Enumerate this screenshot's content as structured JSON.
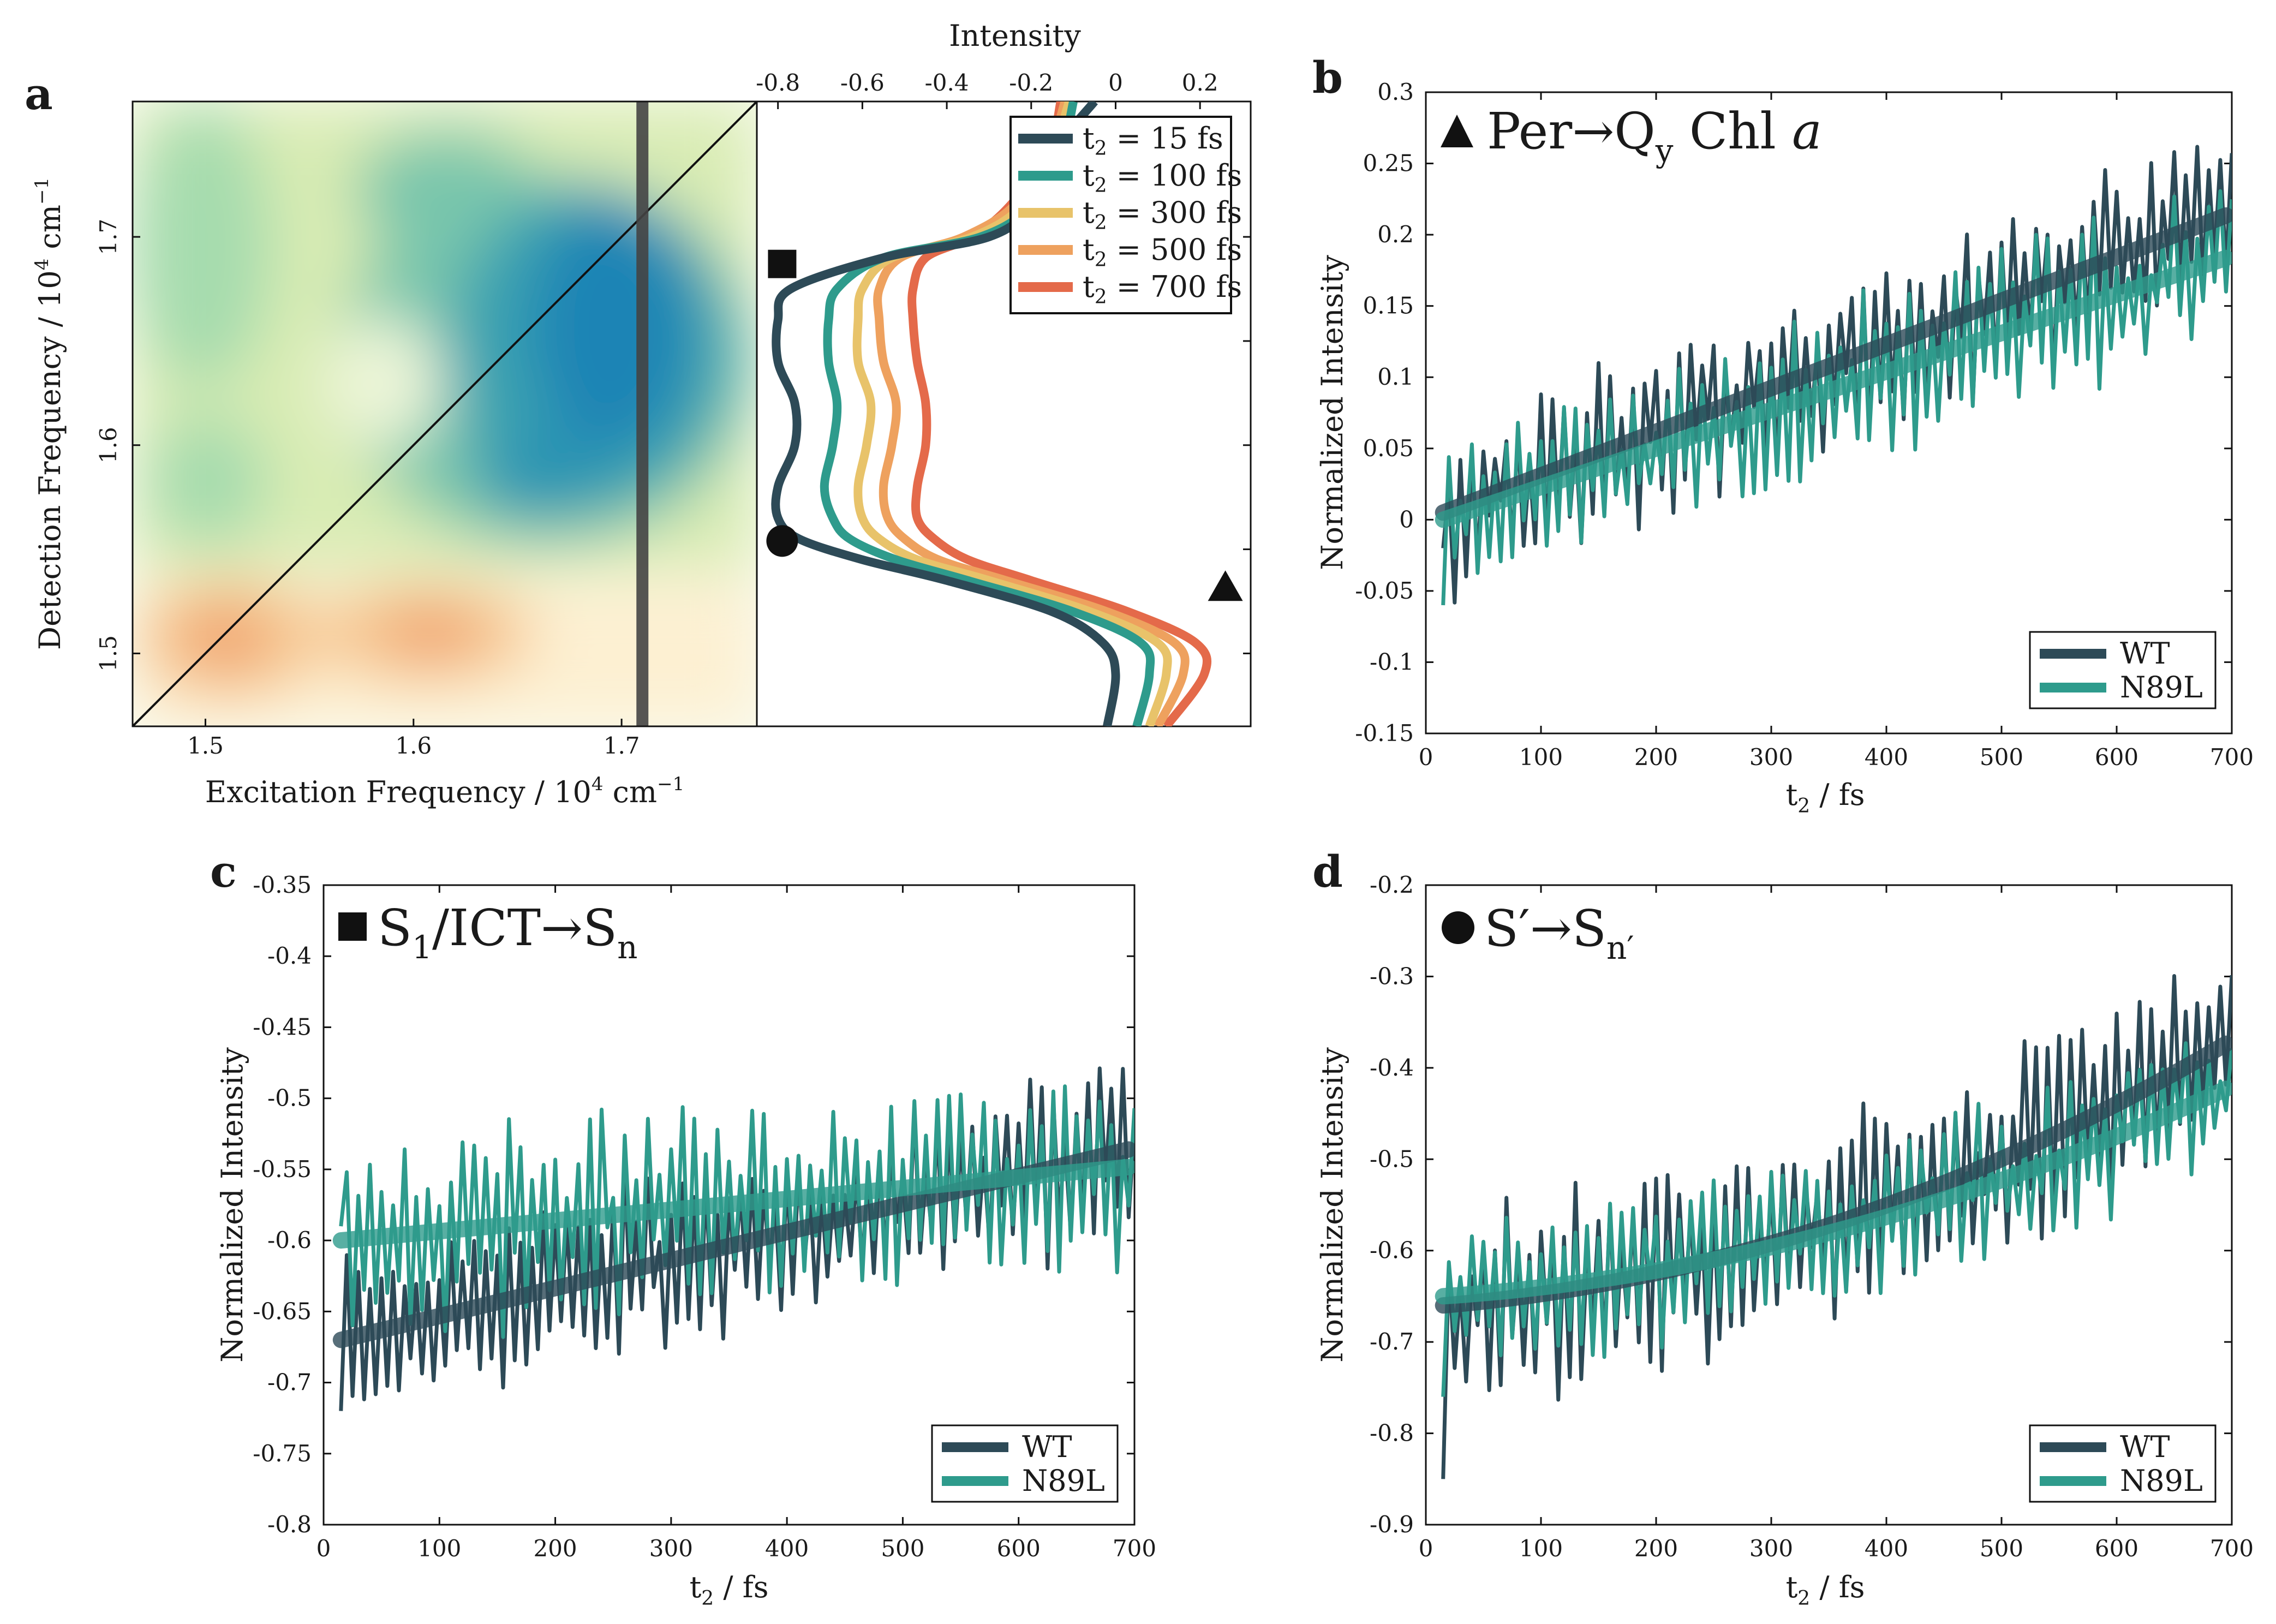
{
  "colors": {
    "wt": "#2d4a57",
    "n89l": "#2e9b8c",
    "t15": "#2d4a57",
    "t100": "#2e9b8c",
    "t300": "#e8c36a",
    "t500": "#eea15e",
    "t700": "#e46a4a"
  },
  "panels": {
    "a": {
      "label": "a",
      "map": {
        "xlabel_main": "Excitation Frequency / 10",
        "xlabel_exp": "4",
        "xlabel_unit": " cm",
        "xlabel_unit_exp": "−1",
        "ylabel_main": "Detection Frequency / 10",
        "ylabel_exp": "4",
        "ylabel_unit": " cm",
        "ylabel_unit_exp": "−1",
        "xlim": [
          1.465,
          1.765
        ],
        "ylim": [
          1.465,
          1.765
        ],
        "xticks": [
          "1.5",
          "1.6",
          "1.7"
        ],
        "yticks": [
          "1.5",
          "1.6",
          "1.7"
        ],
        "slice_at": 1.71
      },
      "spectra": {
        "title": "Intensity",
        "xlim": [
          -0.85,
          0.32
        ],
        "ylim": [
          1.465,
          1.765
        ],
        "xticks": [
          "-0.8",
          "-0.6",
          "-0.4",
          "-0.2",
          "0",
          "0.2"
        ],
        "legend_prefix": "t",
        "legend_sub": "2",
        "legend_entries": [
          "= 15 fs",
          "= 100 fs",
          "= 300 fs",
          "= 500 fs",
          "= 700 fs"
        ],
        "freq": [
          1.465,
          1.49,
          1.505,
          1.52,
          1.535,
          1.545,
          1.555,
          1.565,
          1.58,
          1.6,
          1.62,
          1.64,
          1.66,
          1.675,
          1.69,
          1.7,
          1.715,
          1.74,
          1.765
        ],
        "series": [
          {
            "name": "15 fs",
            "values": [
              -0.02,
              0.0,
              -0.03,
              -0.15,
              -0.4,
              -0.6,
              -0.75,
              -0.8,
              -0.8,
              -0.76,
              -0.76,
              -0.8,
              -0.8,
              -0.77,
              -0.55,
              -0.3,
              -0.2,
              -0.15,
              -0.05
            ]
          },
          {
            "name": "100 fs",
            "values": [
              0.05,
              0.08,
              0.06,
              -0.1,
              -0.35,
              -0.52,
              -0.63,
              -0.67,
              -0.69,
              -0.67,
              -0.66,
              -0.68,
              -0.68,
              -0.66,
              -0.55,
              -0.32,
              -0.2,
              -0.13,
              -0.1
            ]
          },
          {
            "name": "300 fs",
            "values": [
              0.08,
              0.12,
              0.1,
              -0.06,
              -0.3,
              -0.47,
              -0.56,
              -0.6,
              -0.61,
              -0.59,
              -0.58,
              -0.61,
              -0.61,
              -0.6,
              -0.53,
              -0.34,
              -0.22,
              -0.15,
              -0.11
            ]
          },
          {
            "name": "500 fs",
            "values": [
              0.1,
              0.16,
              0.14,
              -0.02,
              -0.26,
              -0.42,
              -0.5,
              -0.54,
              -0.55,
              -0.53,
              -0.52,
              -0.55,
              -0.56,
              -0.56,
              -0.51,
              -0.36,
              -0.24,
              -0.16,
              -0.12
            ]
          },
          {
            "name": "700 fs",
            "values": [
              0.12,
              0.21,
              0.19,
              0.03,
              -0.2,
              -0.35,
              -0.43,
              -0.47,
              -0.47,
              -0.45,
              -0.45,
              -0.47,
              -0.48,
              -0.48,
              -0.45,
              -0.34,
              -0.25,
              -0.16,
              -0.13
            ]
          }
        ],
        "markers": [
          {
            "shape": "square",
            "x": -0.79,
            "y": 1.687
          },
          {
            "shape": "circle",
            "x": -0.79,
            "y": 1.554
          },
          {
            "shape": "triangle",
            "x": 0.26,
            "y": 1.532
          }
        ]
      }
    },
    "b": {
      "label": "b",
      "title_pre": "Per→Q",
      "title_sub": "y",
      "title_post": " Chl ",
      "title_italic": "a",
      "xlim": [
        0,
        700
      ],
      "ylim": [
        -0.15,
        0.3
      ],
      "xticks": [
        "0",
        "100",
        "200",
        "300",
        "400",
        "500",
        "600",
        "700"
      ],
      "yticks": [
        "-0.15",
        "-0.1",
        "-0.05",
        "0",
        "0.05",
        "0.1",
        "0.15",
        "0.2",
        "0.25",
        "0.3"
      ],
      "xlabel": "t",
      "xlabel_sub": "2",
      "xlabel_post": " / fs",
      "ylabel": "Normalized Intensity",
      "legend": [
        "WT",
        "N89L"
      ],
      "wt_fit": [
        0.005,
        0.215
      ],
      "n89l_fit": [
        0.0,
        0.185
      ],
      "wt_y_start": -0.02,
      "n89l_y_start": -0.06
    },
    "c": {
      "label": "c",
      "title_pre": "S",
      "title_sub1": "1",
      "title_mid": "/ICT→S",
      "title_sub2": "n",
      "xlim": [
        0,
        700
      ],
      "ylim": [
        -0.8,
        -0.35
      ],
      "xticks": [
        "0",
        "100",
        "200",
        "300",
        "400",
        "500",
        "600",
        "700"
      ],
      "yticks": [
        "-0.8",
        "-0.75",
        "-0.7",
        "-0.65",
        "-0.6",
        "-0.55",
        "-0.5",
        "-0.45",
        "-0.4",
        "-0.35"
      ],
      "xlabel": "t",
      "xlabel_sub": "2",
      "xlabel_post": " / fs",
      "ylabel": "Normalized Intensity",
      "legend": [
        "WT",
        "N89L"
      ],
      "wt_fit": [
        -0.67,
        -0.535
      ],
      "n89l_fit": [
        -0.6,
        -0.548
      ],
      "wt_y_start": -0.72,
      "n89l_y_start": -0.59
    },
    "d": {
      "label": "d",
      "title_pre": "S′→S",
      "title_sub": "n′",
      "xlim": [
        0,
        700
      ],
      "ylim": [
        -0.9,
        -0.2
      ],
      "xticks": [
        "0",
        "100",
        "200",
        "300",
        "400",
        "500",
        "600",
        "700"
      ],
      "yticks": [
        "-0.9",
        "-0.8",
        "-0.7",
        "-0.6",
        "-0.5",
        "-0.4",
        "-0.3",
        "-0.2"
      ],
      "xlabel": "t",
      "xlabel_sub": "2",
      "xlabel_post": " / fs",
      "ylabel": "Normalized Intensity",
      "legend": [
        "WT",
        "N89L"
      ],
      "wt_fit": [
        -0.66,
        -0.37
      ],
      "n89l_fit": [
        -0.65,
        -0.42
      ],
      "wt_y_start": -0.85,
      "n89l_y_start": -0.76
    }
  },
  "chart_data": [
    {
      "type": "heatmap",
      "title": "",
      "xlabel": "Excitation Frequency / 10^4 cm^-1",
      "ylabel": "Detection Frequency / 10^4 cm^-1",
      "xlim": [
        1.465,
        1.765
      ],
      "ylim": [
        1.465,
        1.765
      ],
      "features": [
        {
          "x": 1.68,
          "y": 1.65,
          "sign": "negative",
          "note": "strong blue bleach band"
        },
        {
          "x": 1.51,
          "y": 1.51,
          "sign": "positive",
          "note": "orange peak"
        },
        {
          "x": 1.61,
          "y": 1.51,
          "sign": "positive",
          "note": "orange peak"
        }
      ],
      "slice_x": 1.71
    },
    {
      "type": "line",
      "title": "Intensity",
      "xlabel": "Intensity",
      "ylabel": "Detection Frequency",
      "series": [
        "t2 = 15 fs",
        "t2 = 100 fs",
        "t2 = 300 fs",
        "t2 = 500 fs",
        "t2 = 700 fs"
      ]
    },
    {
      "type": "line",
      "title": "Per→Qy Chl a",
      "xlabel": "t2 / fs",
      "ylabel": "Normalized Intensity",
      "xlim": [
        0,
        700
      ],
      "ylim": [
        -0.15,
        0.3
      ],
      "series": [
        {
          "name": "WT",
          "trend": [
            0.005,
            0.215
          ]
        },
        {
          "name": "N89L",
          "trend": [
            0.0,
            0.185
          ]
        }
      ]
    },
    {
      "type": "line",
      "title": "S1/ICT→Sn",
      "xlabel": "t2 / fs",
      "ylabel": "Normalized Intensity",
      "xlim": [
        0,
        700
      ],
      "ylim": [
        -0.8,
        -0.35
      ],
      "series": [
        {
          "name": "WT",
          "trend": [
            -0.67,
            -0.535
          ]
        },
        {
          "name": "N89L",
          "trend": [
            -0.6,
            -0.548
          ]
        }
      ]
    },
    {
      "type": "line",
      "title": "S′→Sn′",
      "xlabel": "t2 / fs",
      "ylabel": "Normalized Intensity",
      "xlim": [
        0,
        700
      ],
      "ylim": [
        -0.9,
        -0.2
      ],
      "series": [
        {
          "name": "WT",
          "trend": [
            -0.66,
            -0.37
          ]
        },
        {
          "name": "N89L",
          "trend": [
            -0.65,
            -0.42
          ]
        }
      ]
    }
  ]
}
